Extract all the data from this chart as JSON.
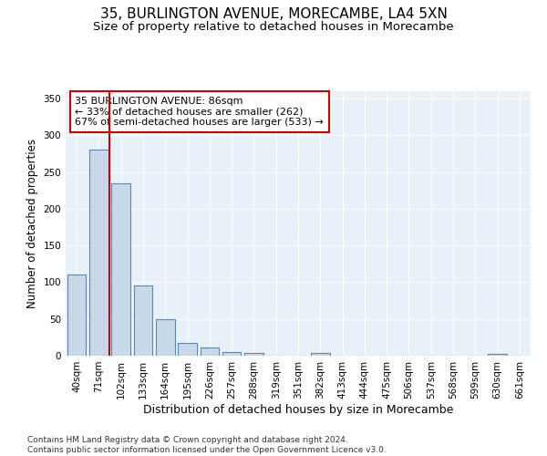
{
  "title": "35, BURLINGTON AVENUE, MORECAMBE, LA4 5XN",
  "subtitle": "Size of property relative to detached houses in Morecambe",
  "xlabel": "Distribution of detached houses by size in Morecambe",
  "ylabel": "Number of detached properties",
  "categories": [
    "40sqm",
    "71sqm",
    "102sqm",
    "133sqm",
    "164sqm",
    "195sqm",
    "226sqm",
    "257sqm",
    "288sqm",
    "319sqm",
    "351sqm",
    "382sqm",
    "413sqm",
    "444sqm",
    "475sqm",
    "506sqm",
    "537sqm",
    "568sqm",
    "599sqm",
    "630sqm",
    "661sqm"
  ],
  "values": [
    110,
    280,
    235,
    95,
    50,
    18,
    11,
    5,
    4,
    0,
    0,
    4,
    0,
    0,
    0,
    0,
    0,
    0,
    0,
    3,
    0
  ],
  "bar_color": "#c9d9ea",
  "bar_edgecolor": "#5588bb",
  "bar_linewidth": 0.8,
  "red_line_color": "#cc0000",
  "annotation_line1": "35 BURLINGTON AVENUE: 86sqm",
  "annotation_line2": "← 33% of detached houses are smaller (262)",
  "annotation_line3": "67% of semi-detached houses are larger (533) →",
  "ylim": [
    0,
    360
  ],
  "yticks": [
    0,
    50,
    100,
    150,
    200,
    250,
    300,
    350
  ],
  "background_color": "#e8f0f8",
  "grid_color": "#ffffff",
  "footer_line1": "Contains HM Land Registry data © Crown copyright and database right 2024.",
  "footer_line2": "Contains public sector information licensed under the Open Government Licence v3.0.",
  "title_fontsize": 11,
  "subtitle_fontsize": 9.5,
  "xlabel_fontsize": 9,
  "ylabel_fontsize": 8.5,
  "annotation_fontsize": 8,
  "tick_fontsize": 7.5,
  "footer_fontsize": 6.5
}
